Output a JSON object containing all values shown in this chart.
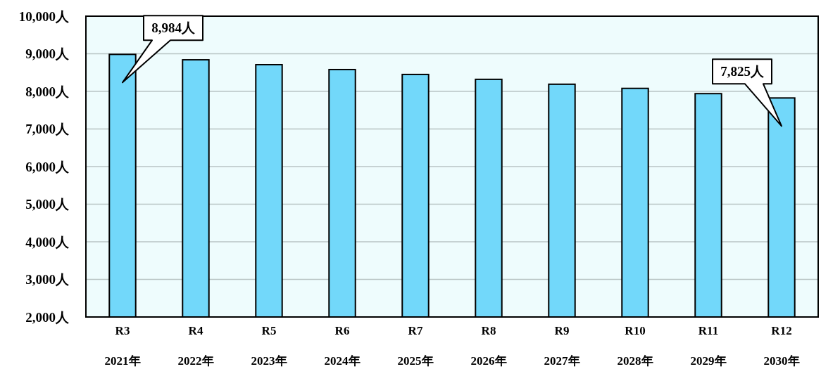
{
  "chart_data": {
    "type": "bar",
    "categories": [
      "R3\n2021年",
      "R4\n2022年",
      "R5\n2023年",
      "R6\n2024年",
      "R7\n2025年",
      "R8\n2026年",
      "R9\n2027年",
      "R10\n2028年",
      "R11\n2029年",
      "R12\n2030年"
    ],
    "values": [
      8984,
      8840,
      8710,
      8580,
      8450,
      8320,
      8190,
      8080,
      7940,
      7825
    ],
    "color": "#72d8fa",
    "ylim": [
      2000,
      10000
    ],
    "yticks": [
      {
        "value": 2000,
        "label": "2,000人"
      },
      {
        "value": 3000,
        "label": "3,000人"
      },
      {
        "value": 4000,
        "label": "4,000人"
      },
      {
        "value": 5000,
        "label": "5,000人"
      },
      {
        "value": 6000,
        "label": "6,000人"
      },
      {
        "value": 7000,
        "label": "7,000人"
      },
      {
        "value": 8000,
        "label": "8,000人"
      },
      {
        "value": 9000,
        "label": "9,000人"
      },
      {
        "value": 10000,
        "label": "10,000人"
      }
    ],
    "grid": "y",
    "annotations": [
      {
        "text": "8,984人",
        "x": "R3\n2021年",
        "y": 8984
      },
      {
        "text": "7,825人",
        "x": "R12\n2030年",
        "y": 7825
      }
    ]
  }
}
